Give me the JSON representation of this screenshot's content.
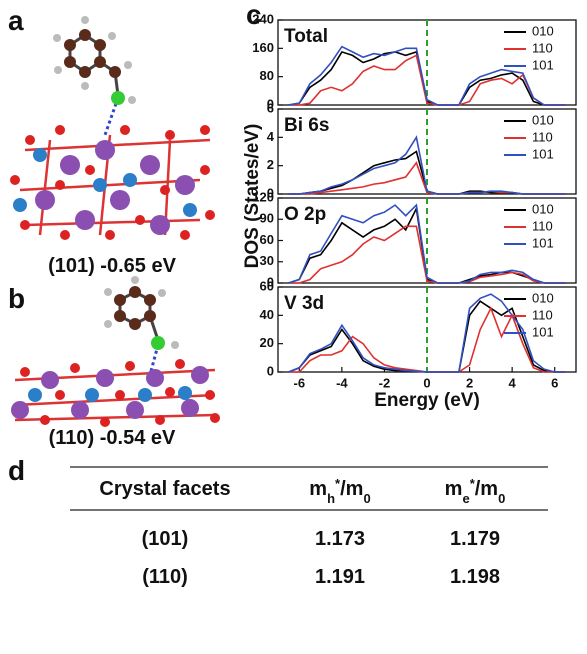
{
  "panel_labels": [
    "a",
    "b",
    "c",
    "d"
  ],
  "structures": [
    {
      "caption": "(101) -0.65 eV"
    },
    {
      "caption": "(110) -0.54 eV"
    }
  ],
  "chart_data": [
    {
      "type": "line",
      "title": "Total",
      "y_label": "DOS (States/eV)",
      "x": [
        -6.5,
        -6,
        -5.5,
        -5,
        -4.5,
        -4,
        -3.5,
        -3,
        -2.5,
        -2,
        -1.5,
        -1,
        -0.5,
        0,
        0.5,
        1,
        1.5,
        2,
        2.5,
        3,
        3.5,
        4,
        4.5,
        5,
        5.5,
        6,
        6.5
      ],
      "xlim": [
        -7,
        7
      ],
      "ylim": [
        0,
        240
      ],
      "yticks": [
        0,
        80,
        160,
        240
      ],
      "vline": {
        "value": 0,
        "color": "#2ca02c"
      },
      "legend": "upper right",
      "series": [
        {
          "name": "010",
          "color": "#000000",
          "values": [
            0,
            5,
            50,
            70,
            100,
            150,
            140,
            120,
            130,
            145,
            150,
            140,
            150,
            10,
            0,
            0,
            0,
            50,
            70,
            75,
            85,
            90,
            70,
            10,
            0,
            0,
            0
          ]
        },
        {
          "name": "110",
          "color": "#e03030",
          "values": [
            0,
            0,
            5,
            40,
            50,
            40,
            60,
            95,
            110,
            100,
            100,
            125,
            140,
            5,
            0,
            0,
            0,
            10,
            60,
            70,
            75,
            60,
            85,
            20,
            0,
            0,
            0
          ]
        },
        {
          "name": "101",
          "color": "#3050c0",
          "values": [
            0,
            5,
            60,
            85,
            120,
            165,
            150,
            135,
            145,
            140,
            150,
            160,
            160,
            15,
            0,
            0,
            0,
            60,
            80,
            90,
            100,
            95,
            90,
            20,
            0,
            0,
            0
          ]
        }
      ]
    },
    {
      "type": "line",
      "title": "Bi 6s",
      "x": [
        -6.5,
        -6,
        -5.5,
        -5,
        -4.5,
        -4,
        -3.5,
        -3,
        -2.5,
        -2,
        -1.5,
        -1,
        -0.5,
        0,
        0.5,
        1,
        1.5,
        2,
        2.5,
        3,
        3.5,
        4,
        4.5,
        5,
        5.5,
        6,
        6.5
      ],
      "xlim": [
        -7,
        7
      ],
      "ylim": [
        0,
        6
      ],
      "yticks": [
        0,
        2,
        4,
        6
      ],
      "vline": {
        "value": 0,
        "color": "#2ca02c"
      },
      "legend": "upper right",
      "series": [
        {
          "name": "010",
          "color": "#000000",
          "values": [
            0,
            0,
            0.1,
            0.2,
            0.4,
            0.6,
            1,
            1.5,
            2,
            2.2,
            2.4,
            2.5,
            3,
            0.2,
            0,
            0,
            0,
            0.2,
            0.2,
            0.1,
            0.1,
            0.1,
            0,
            0,
            0,
            0,
            0
          ]
        },
        {
          "name": "110",
          "color": "#e03030",
          "values": [
            0,
            0,
            0,
            0.1,
            0.2,
            0.3,
            0.4,
            0.5,
            0.7,
            0.8,
            1,
            1.2,
            2.2,
            0.1,
            0,
            0,
            0,
            0.1,
            0.1,
            0.2,
            0.1,
            0.1,
            0,
            0,
            0,
            0,
            0
          ]
        },
        {
          "name": "101",
          "color": "#3050c0",
          "values": [
            0,
            0,
            0.1,
            0.2,
            0.5,
            0.7,
            1,
            1.4,
            1.8,
            2,
            2.2,
            2.8,
            4,
            0.2,
            0,
            0,
            0,
            0.1,
            0.1,
            0.2,
            0.2,
            0.1,
            0,
            0,
            0,
            0,
            0
          ]
        }
      ]
    },
    {
      "type": "line",
      "title": "O 2p",
      "x": [
        -6.5,
        -6,
        -5.5,
        -5,
        -4.5,
        -4,
        -3.5,
        -3,
        -2.5,
        -2,
        -1.5,
        -1,
        -0.5,
        0,
        0.5,
        1,
        1.5,
        2,
        2.5,
        3,
        3.5,
        4,
        4.5,
        5,
        5.5,
        6,
        6.5
      ],
      "xlim": [
        -7,
        7
      ],
      "ylim": [
        0,
        120
      ],
      "yticks": [
        0,
        30,
        60,
        90,
        120
      ],
      "vline": {
        "value": 0,
        "color": "#2ca02c"
      },
      "legend": "upper right",
      "series": [
        {
          "name": "010",
          "color": "#000000",
          "values": [
            0,
            5,
            35,
            40,
            60,
            85,
            75,
            65,
            75,
            80,
            90,
            75,
            105,
            5,
            0,
            0,
            0,
            5,
            10,
            12,
            15,
            15,
            10,
            5,
            0,
            0,
            0
          ]
        },
        {
          "name": "110",
          "color": "#e03030",
          "values": [
            0,
            0,
            5,
            20,
            25,
            30,
            40,
            55,
            65,
            60,
            70,
            80,
            80,
            3,
            0,
            0,
            0,
            2,
            8,
            10,
            12,
            15,
            12,
            3,
            0,
            0,
            0
          ]
        },
        {
          "name": "101",
          "color": "#3050c0",
          "values": [
            0,
            5,
            40,
            45,
            70,
            95,
            90,
            85,
            95,
            100,
            110,
            95,
            110,
            8,
            0,
            0,
            0,
            3,
            12,
            15,
            15,
            18,
            15,
            5,
            0,
            0,
            0
          ]
        }
      ]
    },
    {
      "type": "line",
      "title": "V 3d",
      "x_label": "Energy (eV)",
      "x": [
        -6.5,
        -6,
        -5.5,
        -5,
        -4.5,
        -4,
        -3.5,
        -3,
        -2.5,
        -2,
        -1.5,
        -1,
        -0.5,
        0,
        0.5,
        1,
        1.5,
        2,
        2.5,
        3,
        3.5,
        4,
        4.5,
        5,
        5.5,
        6,
        6.5
      ],
      "xlim": [
        -7,
        7
      ],
      "xticks": [
        -6,
        -4,
        -2,
        0,
        2,
        4,
        6
      ],
      "ylim": [
        0,
        60
      ],
      "yticks": [
        0,
        20,
        40,
        60
      ],
      "vline": {
        "value": 0,
        "color": "#2ca02c"
      },
      "legend": "upper right",
      "series": [
        {
          "name": "010",
          "color": "#000000",
          "values": [
            0,
            3,
            12,
            15,
            18,
            30,
            20,
            8,
            4,
            2,
            1,
            1,
            0.5,
            0,
            0,
            0,
            0,
            40,
            50,
            45,
            40,
            45,
            25,
            5,
            1,
            0,
            0
          ]
        },
        {
          "name": "110",
          "color": "#e03030",
          "values": [
            0,
            0,
            8,
            12,
            12,
            15,
            25,
            20,
            10,
            5,
            3,
            2,
            1,
            0,
            0,
            0,
            0,
            5,
            30,
            45,
            25,
            40,
            20,
            3,
            0,
            0,
            0
          ]
        },
        {
          "name": "101",
          "color": "#3050c0",
          "values": [
            0,
            3,
            13,
            16,
            20,
            33,
            22,
            10,
            5,
            3,
            2,
            1,
            0.5,
            0,
            0,
            0,
            0,
            45,
            52,
            55,
            50,
            40,
            30,
            8,
            2,
            0,
            0
          ]
        }
      ]
    }
  ],
  "table": {
    "header": [
      "Crystal facets",
      [
        "m",
        "h",
        "*",
        "/m",
        "0"
      ],
      [
        "m",
        "e",
        "*",
        "/m",
        "0"
      ]
    ],
    "rows": [
      [
        "(101)",
        "1.173",
        "1.179"
      ],
      [
        "(110)",
        "1.191",
        "1.198"
      ]
    ]
  }
}
